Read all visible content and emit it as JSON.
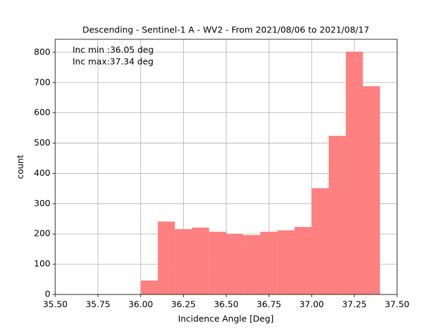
{
  "chart_data": {
    "type": "histogram",
    "title": "Descending - Sentinel-1 A - WV2 - From 2021/08/06 to 2021/08/17",
    "xlabel": "Incidence Angle [Deg]",
    "ylabel": "count",
    "annotations": [
      "Inc min :36.05 deg",
      "Inc max:37.34 deg"
    ],
    "bins": [
      36.0,
      36.1,
      36.2,
      36.3,
      36.4,
      36.5,
      36.6,
      36.7,
      36.8,
      36.9,
      37.0,
      37.1,
      37.2,
      37.3,
      37.4
    ],
    "counts": [
      46,
      241,
      216,
      221,
      207,
      200,
      196,
      207,
      212,
      223,
      351,
      524,
      802,
      688
    ],
    "color": "#ff8080",
    "xlim": [
      35.5,
      37.5
    ],
    "xticks": [
      {
        "value": 35.5,
        "label": "35.50"
      },
      {
        "value": 35.75,
        "label": "35.75"
      },
      {
        "value": 36.0,
        "label": "36.00"
      },
      {
        "value": 36.25,
        "label": "36.25"
      },
      {
        "value": 36.5,
        "label": "36.50"
      },
      {
        "value": 36.75,
        "label": "36.75"
      },
      {
        "value": 37.0,
        "label": "37.00"
      },
      {
        "value": 37.25,
        "label": "37.25"
      },
      {
        "value": 37.5,
        "label": "37.50"
      }
    ],
    "ylim": [
      0,
      843
    ],
    "yticks": [
      0,
      100,
      200,
      300,
      400,
      500,
      600,
      700,
      800
    ],
    "grid": true
  }
}
